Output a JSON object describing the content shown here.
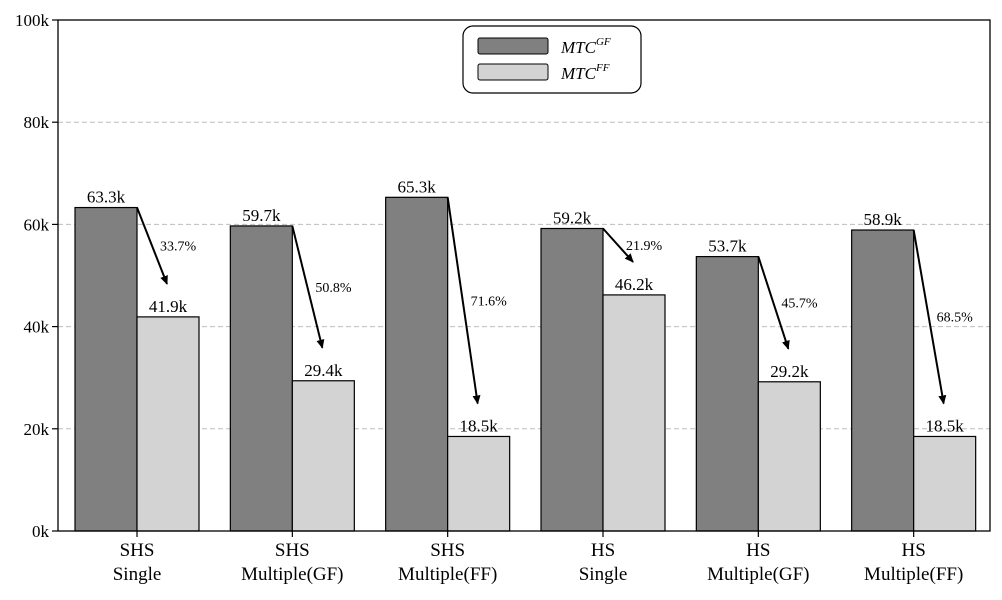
{
  "chart_data": {
    "type": "bar",
    "categories": [
      [
        "SHS",
        "Single"
      ],
      [
        "SHS",
        "Multiple(GF)"
      ],
      [
        "SHS",
        "Multiple(FF)"
      ],
      [
        "HS",
        "Single"
      ],
      [
        "HS",
        "Multiple(GF)"
      ],
      [
        "HS",
        "Multiple(FF)"
      ]
    ],
    "series": [
      {
        "name": "MTC^GF",
        "legend_base": "MTC",
        "legend_sup": "GF",
        "color": "#808080",
        "values": [
          63300,
          59700,
          65300,
          59200,
          53700,
          58900
        ],
        "labels": [
          "63.3k",
          "59.7k",
          "65.3k",
          "59.2k",
          "53.7k",
          "58.9k"
        ]
      },
      {
        "name": "MTC^FF",
        "legend_base": "MTC",
        "legend_sup": "FF",
        "color": "#d3d3d3",
        "values": [
          41900,
          29400,
          18500,
          46200,
          29200,
          18500
        ],
        "labels": [
          "41.9k",
          "29.4k",
          "18.5k",
          "46.2k",
          "29.2k",
          "18.5k"
        ]
      }
    ],
    "reductions": [
      "33.7%",
      "50.8%",
      "71.6%",
      "21.9%",
      "45.7%",
      "68.5%"
    ],
    "yticks": [
      0,
      20000,
      40000,
      60000,
      80000,
      100000
    ],
    "ytick_labels": [
      "0k",
      "20k",
      "40k",
      "60k",
      "80k",
      "100k"
    ],
    "ylim": [
      0,
      100000
    ],
    "grid": "horizontal dashed",
    "legend_position": "top-center",
    "title": "",
    "xlabel": "",
    "ylabel": ""
  }
}
